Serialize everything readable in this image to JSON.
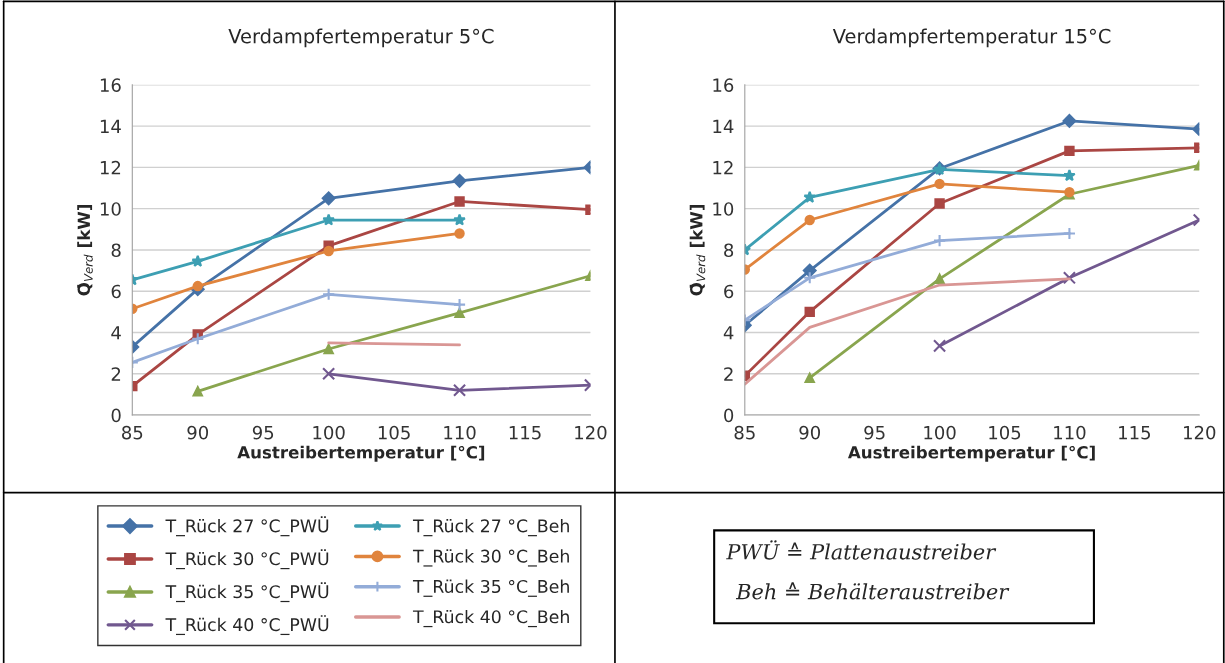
{
  "chart_data": [
    {
      "type": "line",
      "title": "Verdampfertemperatur 5°C",
      "xlabel": "Austreibertemperatur [°C]",
      "ylabel": "Q̇$_{Verd}$ [kW]",
      "x": [
        85,
        90,
        100,
        110,
        120
      ],
      "xlim": [
        85,
        120
      ],
      "xticks": [
        85,
        90,
        95,
        100,
        105,
        110,
        115,
        120
      ],
      "ylim": [
        0,
        16
      ],
      "yticks": [
        0,
        2,
        4,
        6,
        8,
        10,
        12,
        14,
        16
      ],
      "grid": "y",
      "legend": "bottom",
      "series": [
        {
          "name": "T_Rück 27 °C_PWÜ",
          "color": "#4572a7",
          "marker": "diamond",
          "values": [
            3.3,
            6.1,
            10.5,
            11.35,
            12.0
          ]
        },
        {
          "name": "T_Rück 30 °C_PWÜ",
          "color": "#aa4643",
          "marker": "square",
          "values": [
            1.4,
            3.9,
            8.2,
            10.35,
            9.95
          ]
        },
        {
          "name": "T_Rück 35 °C_PWÜ",
          "color": "#89a54e",
          "marker": "triangle",
          "values": [
            null,
            1.15,
            3.2,
            4.95,
            6.75
          ]
        },
        {
          "name": "T_Rück 40 °C_PWÜ",
          "color": "#71588f",
          "marker": "cross",
          "values": [
            null,
            null,
            2.0,
            1.2,
            1.45
          ]
        },
        {
          "name": "T_Rück 27 °C_Beh",
          "color": "#3d9fb3",
          "marker": "star",
          "values": [
            6.55,
            7.45,
            9.45,
            9.45,
            null
          ]
        },
        {
          "name": "T_Rück 30 °C_Beh",
          "color": "#e0843d",
          "marker": "circle",
          "values": [
            5.15,
            6.25,
            7.95,
            8.8,
            null
          ]
        },
        {
          "name": "T_Rück 35 °C_Beh",
          "color": "#93acd8",
          "marker": "plus",
          "values": [
            2.55,
            3.7,
            5.85,
            5.35,
            null
          ]
        },
        {
          "name": "T_Rück 40 °C_Beh",
          "color": "#d99694",
          "marker": "none",
          "values": [
            null,
            null,
            3.5,
            3.4,
            null
          ]
        }
      ]
    },
    {
      "type": "line",
      "title": "Verdampfertemperatur 15°C",
      "xlabel": "Austreibertemperatur [°C]",
      "ylabel": "Q̇$_{Verd}$ [kW]",
      "x": [
        85,
        90,
        100,
        110,
        120
      ],
      "xlim": [
        85,
        120
      ],
      "xticks": [
        85,
        90,
        95,
        100,
        105,
        110,
        115,
        120
      ],
      "ylim": [
        0,
        16
      ],
      "yticks": [
        0,
        2,
        4,
        6,
        8,
        10,
        12,
        14,
        16
      ],
      "grid": "y",
      "legend": "bottom",
      "annotations": [
        "PWÜ ≙ Plattenaustreiber",
        "Beh ≙ Behälteraustreiber"
      ],
      "series": [
        {
          "name": "T_Rück 27 °C_PWÜ",
          "color": "#4572a7",
          "marker": "diamond",
          "values": [
            4.35,
            7.0,
            11.95,
            14.25,
            13.85
          ]
        },
        {
          "name": "T_Rück 30 °C_PWÜ",
          "color": "#aa4643",
          "marker": "square",
          "values": [
            1.9,
            5.0,
            10.25,
            12.8,
            12.95
          ]
        },
        {
          "name": "T_Rück 35 °C_PWÜ",
          "color": "#89a54e",
          "marker": "triangle",
          "values": [
            null,
            1.8,
            6.6,
            10.7,
            12.1
          ]
        },
        {
          "name": "T_Rück 40 °C_PWÜ",
          "color": "#71588f",
          "marker": "cross",
          "values": [
            null,
            null,
            3.35,
            6.65,
            9.45
          ]
        },
        {
          "name": "T_Rück 27 °C_Beh",
          "color": "#3d9fb3",
          "marker": "star",
          "values": [
            8.0,
            10.55,
            11.9,
            11.6,
            null
          ]
        },
        {
          "name": "T_Rück 30 °C_Beh",
          "color": "#e0843d",
          "marker": "circle",
          "values": [
            7.05,
            9.45,
            11.2,
            10.8,
            null
          ]
        },
        {
          "name": "T_Rück 35 °C_Beh",
          "color": "#93acd8",
          "marker": "plus",
          "values": [
            4.6,
            6.65,
            8.45,
            8.8,
            null
          ]
        },
        {
          "name": "T_Rück 40 °C_Beh",
          "color": "#d99694",
          "marker": "none",
          "values": [
            1.5,
            4.25,
            6.3,
            6.6,
            null
          ]
        }
      ]
    }
  ]
}
